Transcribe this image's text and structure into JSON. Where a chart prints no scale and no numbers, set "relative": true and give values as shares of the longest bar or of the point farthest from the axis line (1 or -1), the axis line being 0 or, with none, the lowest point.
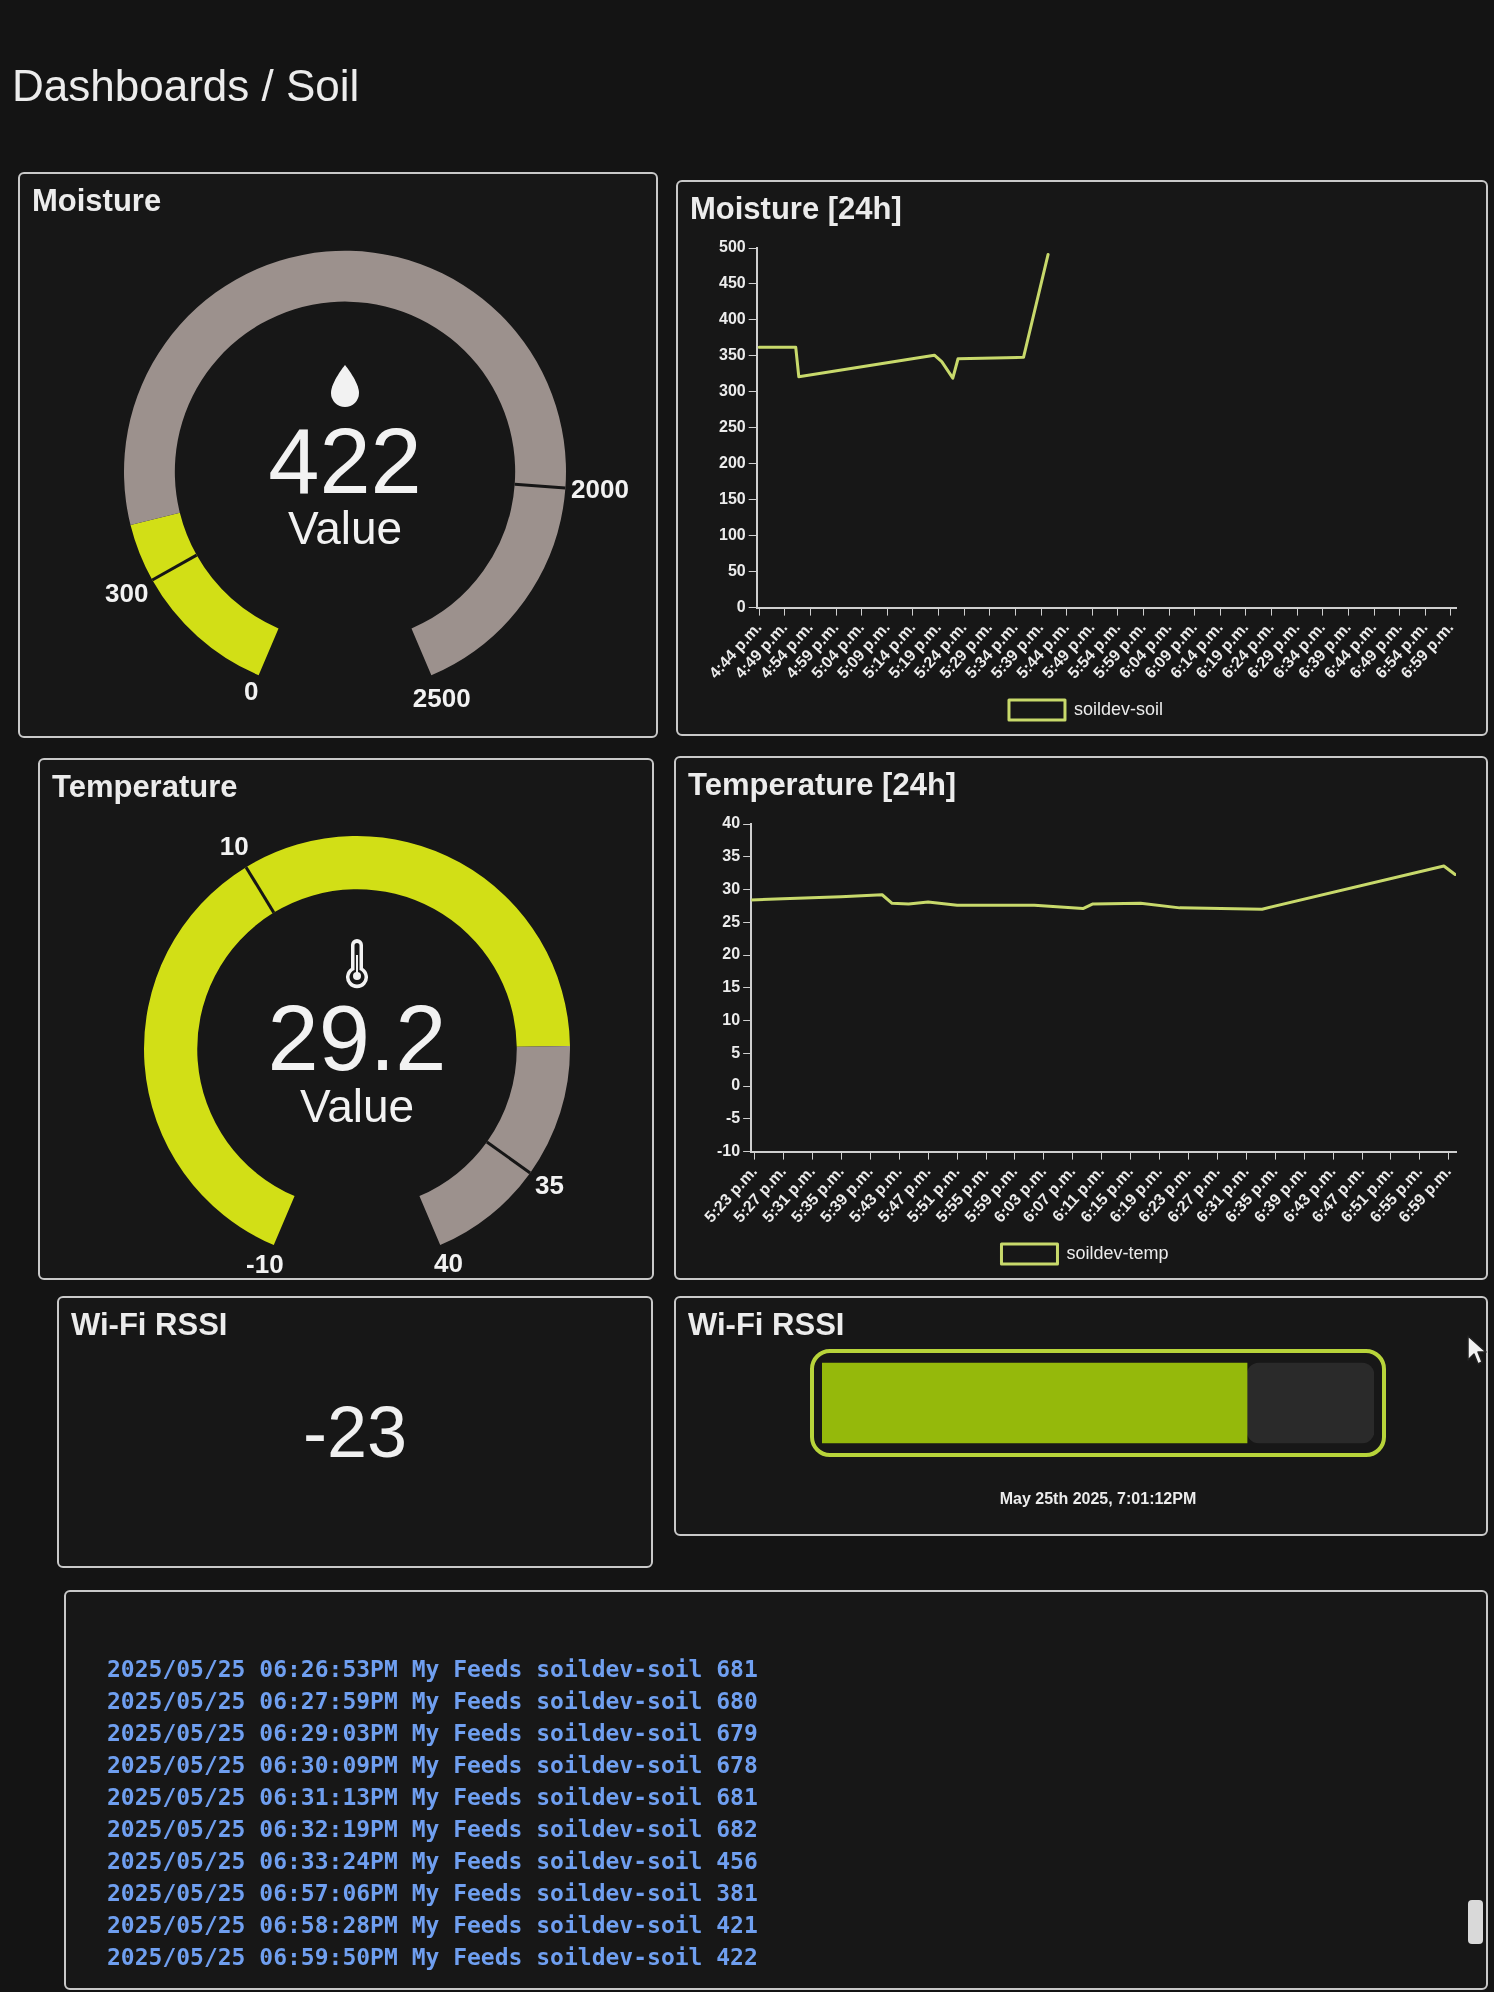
{
  "chart_data": [
    {
      "type": "other",
      "title": "Dashboards / Soil"
    },
    {
      "type": "donut",
      "title": "Moisture",
      "categories": [
        null,
        null,
        null,
        null
      ],
      "values": [
        12,
        4.9,
        63.1,
        20
      ],
      "colors": [
        "#d2df16",
        "#d2df16",
        "#9c918d",
        "#9c918d"
      ],
      "annotations": [
        "422",
        "Value",
        "0",
        "300",
        "2000",
        "2500"
      ]
    },
    {
      "type": "line",
      "title": "Moisture [24h]",
      "x": [
        16.733,
        16.852,
        16.862,
        17.303,
        17.327,
        17.363,
        17.38,
        17.593,
        17.673
      ],
      "series": [
        {
          "name": "soildev-soil",
          "color": "#c8d96b",
          "values": [
            362,
            362,
            321,
            351,
            342,
            319,
            346,
            348,
            491
          ]
        }
      ],
      "xlim": [
        16.725,
        19.0
      ],
      "xticks": [
        {
          "value": 16.7333,
          "label": "4:44 p.m."
        },
        {
          "value": 16.8167,
          "label": "4:49 p.m."
        },
        {
          "value": 16.9,
          "label": "4:54 p.m."
        },
        {
          "value": 16.9833,
          "label": "4:59 p.m."
        },
        {
          "value": 17.0667,
          "label": "5:04 p.m."
        },
        {
          "value": 17.15,
          "label": "5:09 p.m."
        },
        {
          "value": 17.2333,
          "label": "5:14 p.m."
        },
        {
          "value": 17.3167,
          "label": "5:19 p.m."
        },
        {
          "value": 17.4,
          "label": "5:24 p.m."
        },
        {
          "value": 17.4833,
          "label": "5:29 p.m."
        },
        {
          "value": 17.5667,
          "label": "5:34 p.m."
        },
        {
          "value": 17.65,
          "label": "5:39 p.m."
        },
        {
          "value": 17.7333,
          "label": "5:44 p.m."
        },
        {
          "value": 17.8167,
          "label": "5:49 p.m."
        },
        {
          "value": 17.9,
          "label": "5:54 p.m."
        },
        {
          "value": 17.9833,
          "label": "5:59 p.m."
        },
        {
          "value": 18.0667,
          "label": "6:04 p.m."
        },
        {
          "value": 18.15,
          "label": "6:09 p.m."
        },
        {
          "value": 18.2333,
          "label": "6:14 p.m."
        },
        {
          "value": 18.3167,
          "label": "6:19 p.m."
        },
        {
          "value": 18.4,
          "label": "6:24 p.m."
        },
        {
          "value": 18.4833,
          "label": "6:29 p.m."
        },
        {
          "value": 18.5667,
          "label": "6:34 p.m."
        },
        {
          "value": 18.65,
          "label": "6:39 p.m."
        },
        {
          "value": 18.7333,
          "label": "6:44 p.m."
        },
        {
          "value": 18.8167,
          "label": "6:49 p.m."
        },
        {
          "value": 18.9,
          "label": "6:54 p.m."
        },
        {
          "value": 18.9833,
          "label": "6:59 p.m."
        }
      ],
      "ylim": [
        0,
        500
      ],
      "yticks": [
        0,
        50,
        100,
        150,
        200,
        250,
        300,
        350,
        400,
        450,
        500
      ],
      "legend": "bottom",
      "marker": "none"
    },
    {
      "type": "donut",
      "title": "Temperature",
      "categories": [
        null,
        null,
        null,
        null
      ],
      "values": [
        40,
        38.4,
        11.6,
        10
      ],
      "colors": [
        "#d2df16",
        "#d2df16",
        "#9c918d",
        "#9c918d"
      ],
      "annotations": [
        "29.2",
        "Value",
        "-10",
        "10",
        "35",
        "40"
      ]
    },
    {
      "type": "line",
      "title": "Temperature [24h]",
      "x": [
        17.375,
        17.448,
        17.582,
        17.677,
        17.7,
        17.738,
        17.783,
        17.85,
        18.028,
        18.14,
        18.163,
        18.273,
        18.363,
        18.553,
        18.972,
        18.998
      ],
      "series": [
        {
          "name": "soildev-temp",
          "color": "#c8d96b",
          "values": [
            28.4,
            28.6,
            28.9,
            29.2,
            27.9,
            27.8,
            28.1,
            27.6,
            27.6,
            27.1,
            27.8,
            27.9,
            27.2,
            27.0,
            33.6,
            32.3
          ]
        }
      ],
      "xlim": [
        17.375,
        19.0
      ],
      "xticks": [
        {
          "value": 17.3833,
          "label": "5:23 p.m."
        },
        {
          "value": 17.45,
          "label": "5:27 p.m."
        },
        {
          "value": 17.5167,
          "label": "5:31 p.m."
        },
        {
          "value": 17.5833,
          "label": "5:35 p.m."
        },
        {
          "value": 17.65,
          "label": "5:39 p.m."
        },
        {
          "value": 17.7167,
          "label": "5:43 p.m."
        },
        {
          "value": 17.7833,
          "label": "5:47 p.m."
        },
        {
          "value": 17.85,
          "label": "5:51 p.m."
        },
        {
          "value": 17.9167,
          "label": "5:55 p.m."
        },
        {
          "value": 17.9833,
          "label": "5:59 p.m."
        },
        {
          "value": 18.05,
          "label": "6:03 p.m."
        },
        {
          "value": 18.1167,
          "label": "6:07 p.m."
        },
        {
          "value": 18.1833,
          "label": "6:11 p.m."
        },
        {
          "value": 18.25,
          "label": "6:15 p.m."
        },
        {
          "value": 18.3167,
          "label": "6:19 p.m."
        },
        {
          "value": 18.3833,
          "label": "6:23 p.m."
        },
        {
          "value": 18.45,
          "label": "6:27 p.m."
        },
        {
          "value": 18.5167,
          "label": "6:31 p.m."
        },
        {
          "value": 18.5833,
          "label": "6:35 p.m."
        },
        {
          "value": 18.65,
          "label": "6:39 p.m."
        },
        {
          "value": 18.7167,
          "label": "6:43 p.m."
        },
        {
          "value": 18.7833,
          "label": "6:47 p.m."
        },
        {
          "value": 18.85,
          "label": "6:51 p.m."
        },
        {
          "value": 18.9167,
          "label": "6:55 p.m."
        },
        {
          "value": 18.9833,
          "label": "6:59 p.m."
        }
      ],
      "ylim": [
        -10,
        40
      ],
      "yticks": [
        -10,
        -5,
        0,
        5,
        10,
        15,
        20,
        25,
        30,
        35,
        40
      ],
      "legend": "bottom",
      "marker": "none"
    },
    {
      "type": "other",
      "title": "Wi-Fi RSSI",
      "values": [
        -23
      ],
      "data_labels": true
    },
    {
      "type": "bar",
      "title": "Wi-Fi RSSI",
      "orientation": "horizontal",
      "stacked": true,
      "relative": true,
      "categories": [
        null
      ],
      "series": [
        {
          "color": "#95b90b",
          "values": [
            0.77
          ]
        },
        {
          "color": "#2a2a2a",
          "values": [
            0.23
          ]
        }
      ],
      "annotations": [
        "May 25th 2025, 7:01:12PM"
      ]
    },
    {
      "type": "other",
      "annotations": [
        "2025/05/25 06:26:53PM My Feeds soildev-soil 681",
        "2025/05/25 06:27:59PM My Feeds soildev-soil 680",
        "2025/05/25 06:29:03PM My Feeds soildev-soil 679",
        "2025/05/25 06:30:09PM My Feeds soildev-soil 678",
        "2025/05/25 06:31:13PM My Feeds soildev-soil 681",
        "2025/05/25 06:32:19PM My Feeds soildev-soil 682",
        "2025/05/25 06:33:24PM My Feeds soildev-soil 456",
        "2025/05/25 06:57:06PM My Feeds soildev-soil 381",
        "2025/05/25 06:58:28PM My Feeds soildev-soil 421",
        "2025/05/25 06:59:50PM My Feeds soildev-soil 422"
      ]
    }
  ]
}
